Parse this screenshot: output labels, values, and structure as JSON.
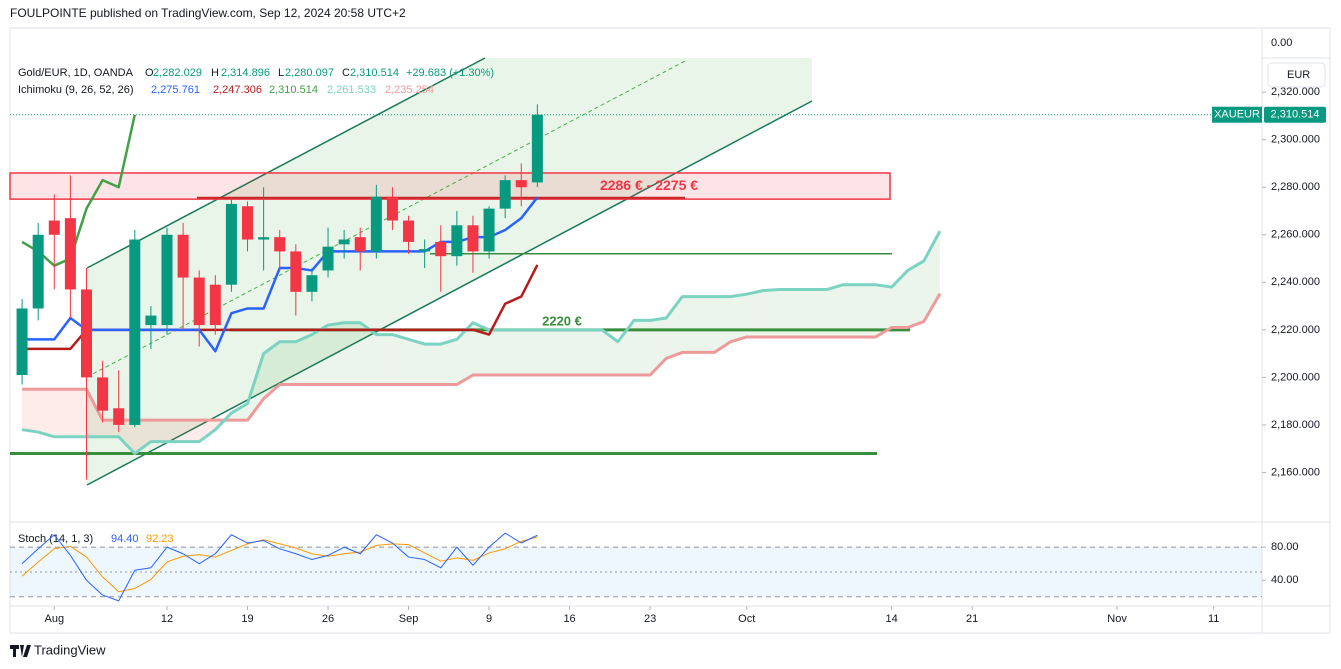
{
  "header": {
    "publisher": "FOULPOINTE published on TradingView.com, Sep 12, 2024 20:58 UTC+2"
  },
  "footer": {
    "brand": "TradingView"
  },
  "chart_data": {
    "type": "candlestick",
    "symbol": "Gold/EUR, 1D, OANDA",
    "ohlc_prefixes": [
      "O",
      "H",
      "L",
      "C"
    ],
    "last_bar_labels": [
      "2,282.029",
      "2,314.896",
      "2,280.097",
      "2,310.514"
    ],
    "change_label": "+29.683 (+1.30%)",
    "currency": "EUR",
    "scale_top_label": "0.00",
    "price_tag": {
      "name": "XAUEUR",
      "value": 2310.514,
      "label": "2,310.514",
      "color": "#089981"
    },
    "up_color": "#089981",
    "down_color": "#f23645",
    "open": [
      2201,
      2229,
      2266,
      2267,
      2237,
      2200,
      2187,
      2180,
      2222,
      2222,
      2260,
      2242,
      2239,
      2239,
      2272,
      2258,
      2259,
      2253,
      2236,
      2245,
      2256,
      2259,
      2253,
      2276,
      2266,
      2253,
      2257,
      2251,
      2264,
      2253,
      2271,
      2283,
      2282.029
    ],
    "high": [
      2233,
      2265,
      2277,
      2285,
      2246,
      2207,
      2203,
      2262,
      2230,
      2263,
      2265,
      2245,
      2243,
      2275,
      2274,
      2280,
      2262,
      2256,
      2246,
      2263,
      2262,
      2263,
      2281,
      2280,
      2268,
      2258,
      2264,
      2270,
      2268,
      2272,
      2285,
      2290,
      2314.896
    ],
    "low": [
      2197,
      2224,
      2237,
      2225,
      2157,
      2181,
      2177,
      2179,
      2212,
      2218,
      2220,
      2213,
      2218,
      2236,
      2253,
      2245,
      2245,
      2226,
      2232,
      2242,
      2250,
      2245,
      2250,
      2262,
      2252,
      2246,
      2236,
      2247,
      2244,
      2250,
      2267,
      2272,
      2280.097
    ],
    "close": [
      2229,
      2260,
      2260,
      2237,
      2200,
      2186,
      2180,
      2258,
      2226,
      2260,
      2242,
      2222,
      2222,
      2273,
      2258,
      2259,
      2253,
      2236,
      2243,
      2255,
      2258,
      2253,
      2276,
      2266,
      2257,
      2254,
      2251,
      2264,
      2253,
      2271,
      2283,
      2280,
      2310.514
    ],
    "xlim": [
      -0.75,
      77
    ],
    "xticks": [
      {
        "value": 2,
        "label": "Aug"
      },
      {
        "value": 9,
        "label": "12"
      },
      {
        "value": 14,
        "label": "19"
      },
      {
        "value": 19,
        "label": "26"
      },
      {
        "value": 24,
        "label": "Sep"
      },
      {
        "value": 29,
        "label": "9"
      },
      {
        "value": 34,
        "label": "16"
      },
      {
        "value": 39,
        "label": "23"
      },
      {
        "value": 45,
        "label": "Oct"
      },
      {
        "value": 54,
        "label": "14"
      },
      {
        "value": 59,
        "label": "21"
      },
      {
        "value": 68,
        "label": "Nov"
      },
      {
        "value": 74,
        "label": "11"
      }
    ],
    "ylim": [
      2140,
      2347
    ],
    "yticks": [
      {
        "value": 2160,
        "label": "2,160.000"
      },
      {
        "value": 2180,
        "label": "2,180.000"
      },
      {
        "value": 2200,
        "label": "2,200.000"
      },
      {
        "value": 2220,
        "label": "2,220.000"
      },
      {
        "value": 2240,
        "label": "2,240.000"
      },
      {
        "value": 2260,
        "label": "2,260.000"
      },
      {
        "value": 2280,
        "label": "2,280.000"
      },
      {
        "value": 2300,
        "label": "2,300.000"
      },
      {
        "value": 2320,
        "label": "2,320.000"
      }
    ],
    "indicator": {
      "name": "Ichimoku (9, 26, 52, 26)",
      "series": [
        {
          "color": "#2962ff",
          "value_label": "2,275.761",
          "values": [
            2216,
            2216,
            2216,
            2225,
            2220,
            2220,
            2220,
            2220,
            2220,
            2220,
            2220,
            2220,
            2211,
            2227,
            2229,
            2229,
            2246,
            2246,
            2245,
            2253,
            2253,
            2253,
            2253,
            2253,
            2253,
            2253,
            2257,
            2257,
            2259,
            2259,
            2262,
            2267,
            2275.761,
            null,
            null,
            null,
            null,
            null,
            null,
            null,
            null,
            null,
            null,
            null,
            null,
            null,
            null,
            null,
            null,
            null,
            null,
            null,
            null,
            null,
            null,
            null,
            null,
            null
          ]
        },
        {
          "color": "#b71c1c",
          "value_label": "2,247.306",
          "values": [
            2212,
            2212,
            2212,
            2212,
            2220,
            2220,
            2220,
            2220,
            2220,
            2220,
            2220,
            2220,
            2220,
            2220,
            2220,
            2220,
            2220,
            2220,
            2220,
            2220,
            2220,
            2220,
            2220,
            2220,
            2220,
            2220,
            2220,
            2220,
            2220,
            2218,
            2231,
            2234,
            2247.306,
            null,
            null,
            null,
            null,
            null,
            null,
            null,
            null,
            null,
            null,
            null,
            null,
            null,
            null,
            null,
            null,
            null,
            null,
            null,
            null,
            null,
            null,
            null,
            null,
            null
          ]
        },
        {
          "color": "#43a047",
          "value_label": "2,310.514",
          "values": [
            2257,
            2253,
            2247,
            2250,
            2271,
            2283,
            2280,
            2310.514,
            null,
            null,
            null,
            null,
            null,
            null,
            null,
            null,
            null,
            null,
            null,
            null,
            null,
            null,
            null,
            null,
            null,
            null,
            null,
            null,
            null,
            null,
            null,
            null,
            null,
            null,
            null,
            null,
            null,
            null,
            null,
            null,
            null,
            null,
            null,
            null,
            null,
            null,
            null,
            null,
            null,
            null,
            null,
            null,
            null,
            null,
            null,
            null,
            null,
            null
          ]
        },
        {
          "color": "#7dd3c2",
          "value_label": "2,261.533",
          "values": [
            2178,
            2177,
            2175,
            2175,
            2175,
            2175,
            2175,
            2168,
            2173,
            2173,
            2173,
            2173,
            2178,
            2185,
            2189,
            2210,
            2215,
            2215,
            2218,
            2222,
            2223,
            2223,
            2218,
            2218,
            2216,
            2214,
            2214,
            2216,
            2223,
            2220,
            2220,
            2220,
            2220,
            2220,
            2220,
            2220,
            2220,
            2215,
            2224,
            2224,
            2225,
            2234,
            2234,
            2234,
            2234,
            2235,
            2236.5,
            2237,
            2237,
            2237,
            2237,
            2239,
            2239,
            2239,
            2238,
            2245,
            2249,
            2261.533
          ]
        },
        {
          "color": "#ef9a9a",
          "value_label": "2,235.254",
          "values": [
            2195,
            2195,
            2195,
            2195,
            2195,
            2182,
            2182,
            2182,
            2182,
            2182,
            2182,
            2182,
            2182,
            2182,
            2182,
            2191,
            2197,
            2197,
            2197,
            2197,
            2197,
            2197,
            2197,
            2197,
            2197,
            2197,
            2197,
            2197,
            2201,
            2201,
            2201,
            2201,
            2201,
            2201,
            2201,
            2201,
            2201,
            2201,
            2201,
            2201,
            2208,
            2210.5,
            2210.5,
            2210.5,
            2215,
            2217,
            2217,
            2217,
            2217,
            2217,
            2217,
            2217,
            2217,
            2217,
            2221,
            2221,
            2223.5,
            2235.254
          ]
        }
      ]
    },
    "zones": [
      {
        "from": 2275,
        "to": 2286,
        "label": "2286 € - 2275 €",
        "color": "#f23645"
      }
    ],
    "levels": [
      {
        "value": 2220,
        "label": "2220 €",
        "color": "#388e3c"
      },
      {
        "value": 2252,
        "color": "#388e3c"
      },
      {
        "value": 2168,
        "color": "#388e3c"
      },
      {
        "value": 2275.6,
        "color": "#c62828"
      }
    ],
    "oscillator": {
      "name": "Stoch (14, 1, 3)",
      "ylim": [
        10,
        108
      ],
      "yticks": [
        {
          "value": 80,
          "label": "80.00"
        },
        {
          "value": 40,
          "label": "40.00"
        }
      ],
      "bands": [
        80,
        50,
        20
      ],
      "series": [
        {
          "color": "#2962ff",
          "value_label": "94.40",
          "values": [
            60,
            78,
            95,
            70,
            40,
            22,
            15,
            52,
            55,
            80,
            72,
            60,
            72,
            95,
            85,
            88,
            78,
            72,
            65,
            70,
            80,
            72,
            95,
            85,
            68,
            65,
            55,
            80,
            58,
            80,
            97,
            85,
            94.4
          ]
        },
        {
          "color": "#ff9800",
          "value_label": "92.23",
          "values": [
            45,
            62,
            78,
            81,
            68,
            44,
            26,
            30,
            41,
            62,
            69,
            71,
            68,
            76,
            84,
            89,
            84,
            79,
            72,
            69,
            72,
            74,
            82,
            84,
            83,
            73,
            63,
            67,
            64,
            73,
            78,
            87,
            92.23
          ]
        }
      ]
    }
  }
}
